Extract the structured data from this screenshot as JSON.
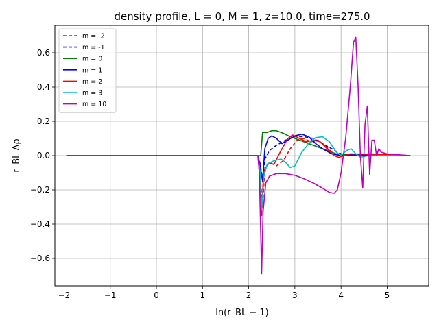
{
  "chart_data": {
    "type": "line",
    "title": "density profile, L = 0, M = 1, z=10.0, time=275.0",
    "xlabel": "ln(r_BL − 1)",
    "ylabel": "r_BL Δρ",
    "xlim": [
      -2.2,
      5.9
    ],
    "ylim": [
      -0.76,
      0.76
    ],
    "xticks": [
      -2,
      -1,
      0,
      1,
      2,
      3,
      4,
      5
    ],
    "xtick_labels": [
      "−2",
      "−1",
      "0",
      "1",
      "2",
      "3",
      "4",
      "5"
    ],
    "yticks": [
      -0.6,
      -0.4,
      -0.2,
      0.0,
      0.2,
      0.4,
      0.6
    ],
    "ytick_labels": [
      "−0.6",
      "−0.4",
      "−0.2",
      "0.0",
      "0.2",
      "0.4",
      "0.6"
    ],
    "grid": true,
    "legend_position": "top-left",
    "series": [
      {
        "name": "m = -2",
        "color": "#ff0000",
        "dashed": true,
        "points": [
          [
            -1.95,
            0.0
          ],
          [
            2.2,
            0.0
          ],
          [
            2.25,
            -0.12
          ],
          [
            2.3,
            -0.3
          ],
          [
            2.35,
            -0.08
          ],
          [
            2.45,
            -0.04
          ],
          [
            2.6,
            -0.06
          ],
          [
            2.75,
            -0.03
          ],
          [
            2.9,
            0.04
          ],
          [
            3.05,
            0.09
          ],
          [
            3.2,
            0.1
          ],
          [
            3.35,
            0.08
          ],
          [
            3.5,
            0.09
          ],
          [
            3.65,
            0.06
          ],
          [
            3.8,
            0.02
          ],
          [
            3.95,
            0.0
          ],
          [
            4.3,
            0.01
          ],
          [
            5.0,
            0.005
          ],
          [
            5.5,
            0.0
          ]
        ]
      },
      {
        "name": "m = -1",
        "color": "#0000ff",
        "dashed": true,
        "points": [
          [
            -1.95,
            0.0
          ],
          [
            2.2,
            0.0
          ],
          [
            2.25,
            -0.05
          ],
          [
            2.3,
            -0.14
          ],
          [
            2.35,
            -0.02
          ],
          [
            2.45,
            0.03
          ],
          [
            2.6,
            0.06
          ],
          [
            2.8,
            0.09
          ],
          [
            3.0,
            0.11
          ],
          [
            3.2,
            0.11
          ],
          [
            3.4,
            0.1
          ],
          [
            3.6,
            0.07
          ],
          [
            3.8,
            0.04
          ],
          [
            4.0,
            0.01
          ],
          [
            4.3,
            0.0
          ],
          [
            5.0,
            0.005
          ],
          [
            5.5,
            0.0
          ]
        ]
      },
      {
        "name": "m = 0",
        "color": "#008000",
        "dashed": false,
        "points": [
          [
            -1.95,
            0.0
          ],
          [
            2.2,
            0.0
          ],
          [
            2.26,
            0.0
          ],
          [
            2.3,
            0.135
          ],
          [
            2.4,
            0.135
          ],
          [
            2.5,
            0.145
          ],
          [
            2.6,
            0.145
          ],
          [
            2.75,
            0.13
          ],
          [
            2.9,
            0.11
          ],
          [
            3.1,
            0.09
          ],
          [
            3.3,
            0.07
          ],
          [
            3.5,
            0.05
          ],
          [
            3.7,
            0.03
          ],
          [
            3.9,
            0.01
          ],
          [
            4.2,
            0.0
          ],
          [
            5.0,
            0.0
          ],
          [
            5.5,
            0.0
          ]
        ]
      },
      {
        "name": "m = 1",
        "color": "#0000ff",
        "dashed": false,
        "points": [
          [
            -1.95,
            0.0
          ],
          [
            2.2,
            0.0
          ],
          [
            2.25,
            -0.06
          ],
          [
            2.3,
            -0.15
          ],
          [
            2.35,
            0.04
          ],
          [
            2.42,
            0.1
          ],
          [
            2.5,
            0.115
          ],
          [
            2.6,
            0.1
          ],
          [
            2.72,
            0.07
          ],
          [
            2.85,
            0.09
          ],
          [
            3.0,
            0.115
          ],
          [
            3.15,
            0.125
          ],
          [
            3.3,
            0.11
          ],
          [
            3.45,
            0.07
          ],
          [
            3.6,
            0.04
          ],
          [
            3.8,
            0.01
          ],
          [
            4.0,
            0.0
          ],
          [
            4.2,
            0.005
          ],
          [
            5.0,
            0.0
          ],
          [
            5.5,
            0.0
          ]
        ]
      },
      {
        "name": "m = 2",
        "color": "#ff0000",
        "dashed": false,
        "points": [
          [
            -1.95,
            0.0
          ],
          [
            2.2,
            0.0
          ],
          [
            2.25,
            -0.15
          ],
          [
            2.28,
            -0.35
          ],
          [
            2.32,
            -0.1
          ],
          [
            2.42,
            -0.045
          ],
          [
            2.55,
            -0.05
          ],
          [
            2.7,
            0.03
          ],
          [
            2.85,
            0.1
          ],
          [
            2.95,
            0.12
          ],
          [
            3.1,
            0.1
          ],
          [
            3.25,
            0.08
          ],
          [
            3.4,
            0.09
          ],
          [
            3.55,
            0.08
          ],
          [
            3.7,
            0.04
          ],
          [
            3.85,
            0.0
          ],
          [
            3.95,
            -0.01
          ],
          [
            4.2,
            0.01
          ],
          [
            5.0,
            0.005
          ],
          [
            5.5,
            0.0
          ]
        ]
      },
      {
        "name": "m = 3",
        "color": "#00bfbf",
        "dashed": false,
        "points": [
          [
            -1.95,
            0.0
          ],
          [
            2.2,
            0.0
          ],
          [
            2.25,
            -0.1
          ],
          [
            2.28,
            -0.32
          ],
          [
            2.33,
            -0.12
          ],
          [
            2.4,
            -0.05
          ],
          [
            2.55,
            -0.03
          ],
          [
            2.7,
            -0.02
          ],
          [
            2.8,
            -0.04
          ],
          [
            2.9,
            -0.07
          ],
          [
            3.0,
            -0.06
          ],
          [
            3.15,
            0.02
          ],
          [
            3.3,
            0.07
          ],
          [
            3.45,
            0.105
          ],
          [
            3.6,
            0.11
          ],
          [
            3.75,
            0.08
          ],
          [
            3.9,
            0.02
          ],
          [
            4.0,
            0.0
          ],
          [
            4.12,
            0.03
          ],
          [
            4.22,
            0.04
          ],
          [
            4.32,
            0.01
          ],
          [
            4.42,
            -0.01
          ],
          [
            4.6,
            0.0
          ],
          [
            5.5,
            0.0
          ]
        ]
      },
      {
        "name": "m = 10",
        "color": "#bf00bf",
        "dashed": false,
        "points": [
          [
            -1.95,
            0.0
          ],
          [
            2.2,
            0.0
          ],
          [
            2.23,
            -0.1
          ],
          [
            2.26,
            -0.45
          ],
          [
            2.28,
            -0.69
          ],
          [
            2.31,
            -0.33
          ],
          [
            2.37,
            -0.16
          ],
          [
            2.45,
            -0.12
          ],
          [
            2.6,
            -0.105
          ],
          [
            2.8,
            -0.105
          ],
          [
            3.0,
            -0.115
          ],
          [
            3.2,
            -0.135
          ],
          [
            3.4,
            -0.16
          ],
          [
            3.6,
            -0.19
          ],
          [
            3.75,
            -0.215
          ],
          [
            3.85,
            -0.22
          ],
          [
            3.92,
            -0.2
          ],
          [
            4.0,
            -0.1
          ],
          [
            4.1,
            0.1
          ],
          [
            4.2,
            0.4
          ],
          [
            4.27,
            0.66
          ],
          [
            4.32,
            0.69
          ],
          [
            4.37,
            0.4
          ],
          [
            4.42,
            0.0
          ],
          [
            4.47,
            -0.19
          ],
          [
            4.52,
            0.18
          ],
          [
            4.57,
            0.29
          ],
          [
            4.62,
            -0.11
          ],
          [
            4.67,
            0.09
          ],
          [
            4.72,
            0.09
          ],
          [
            4.77,
            0.0
          ],
          [
            4.82,
            0.04
          ],
          [
            4.87,
            0.02
          ],
          [
            5.0,
            0.01
          ],
          [
            5.5,
            0.0
          ]
        ]
      }
    ]
  }
}
